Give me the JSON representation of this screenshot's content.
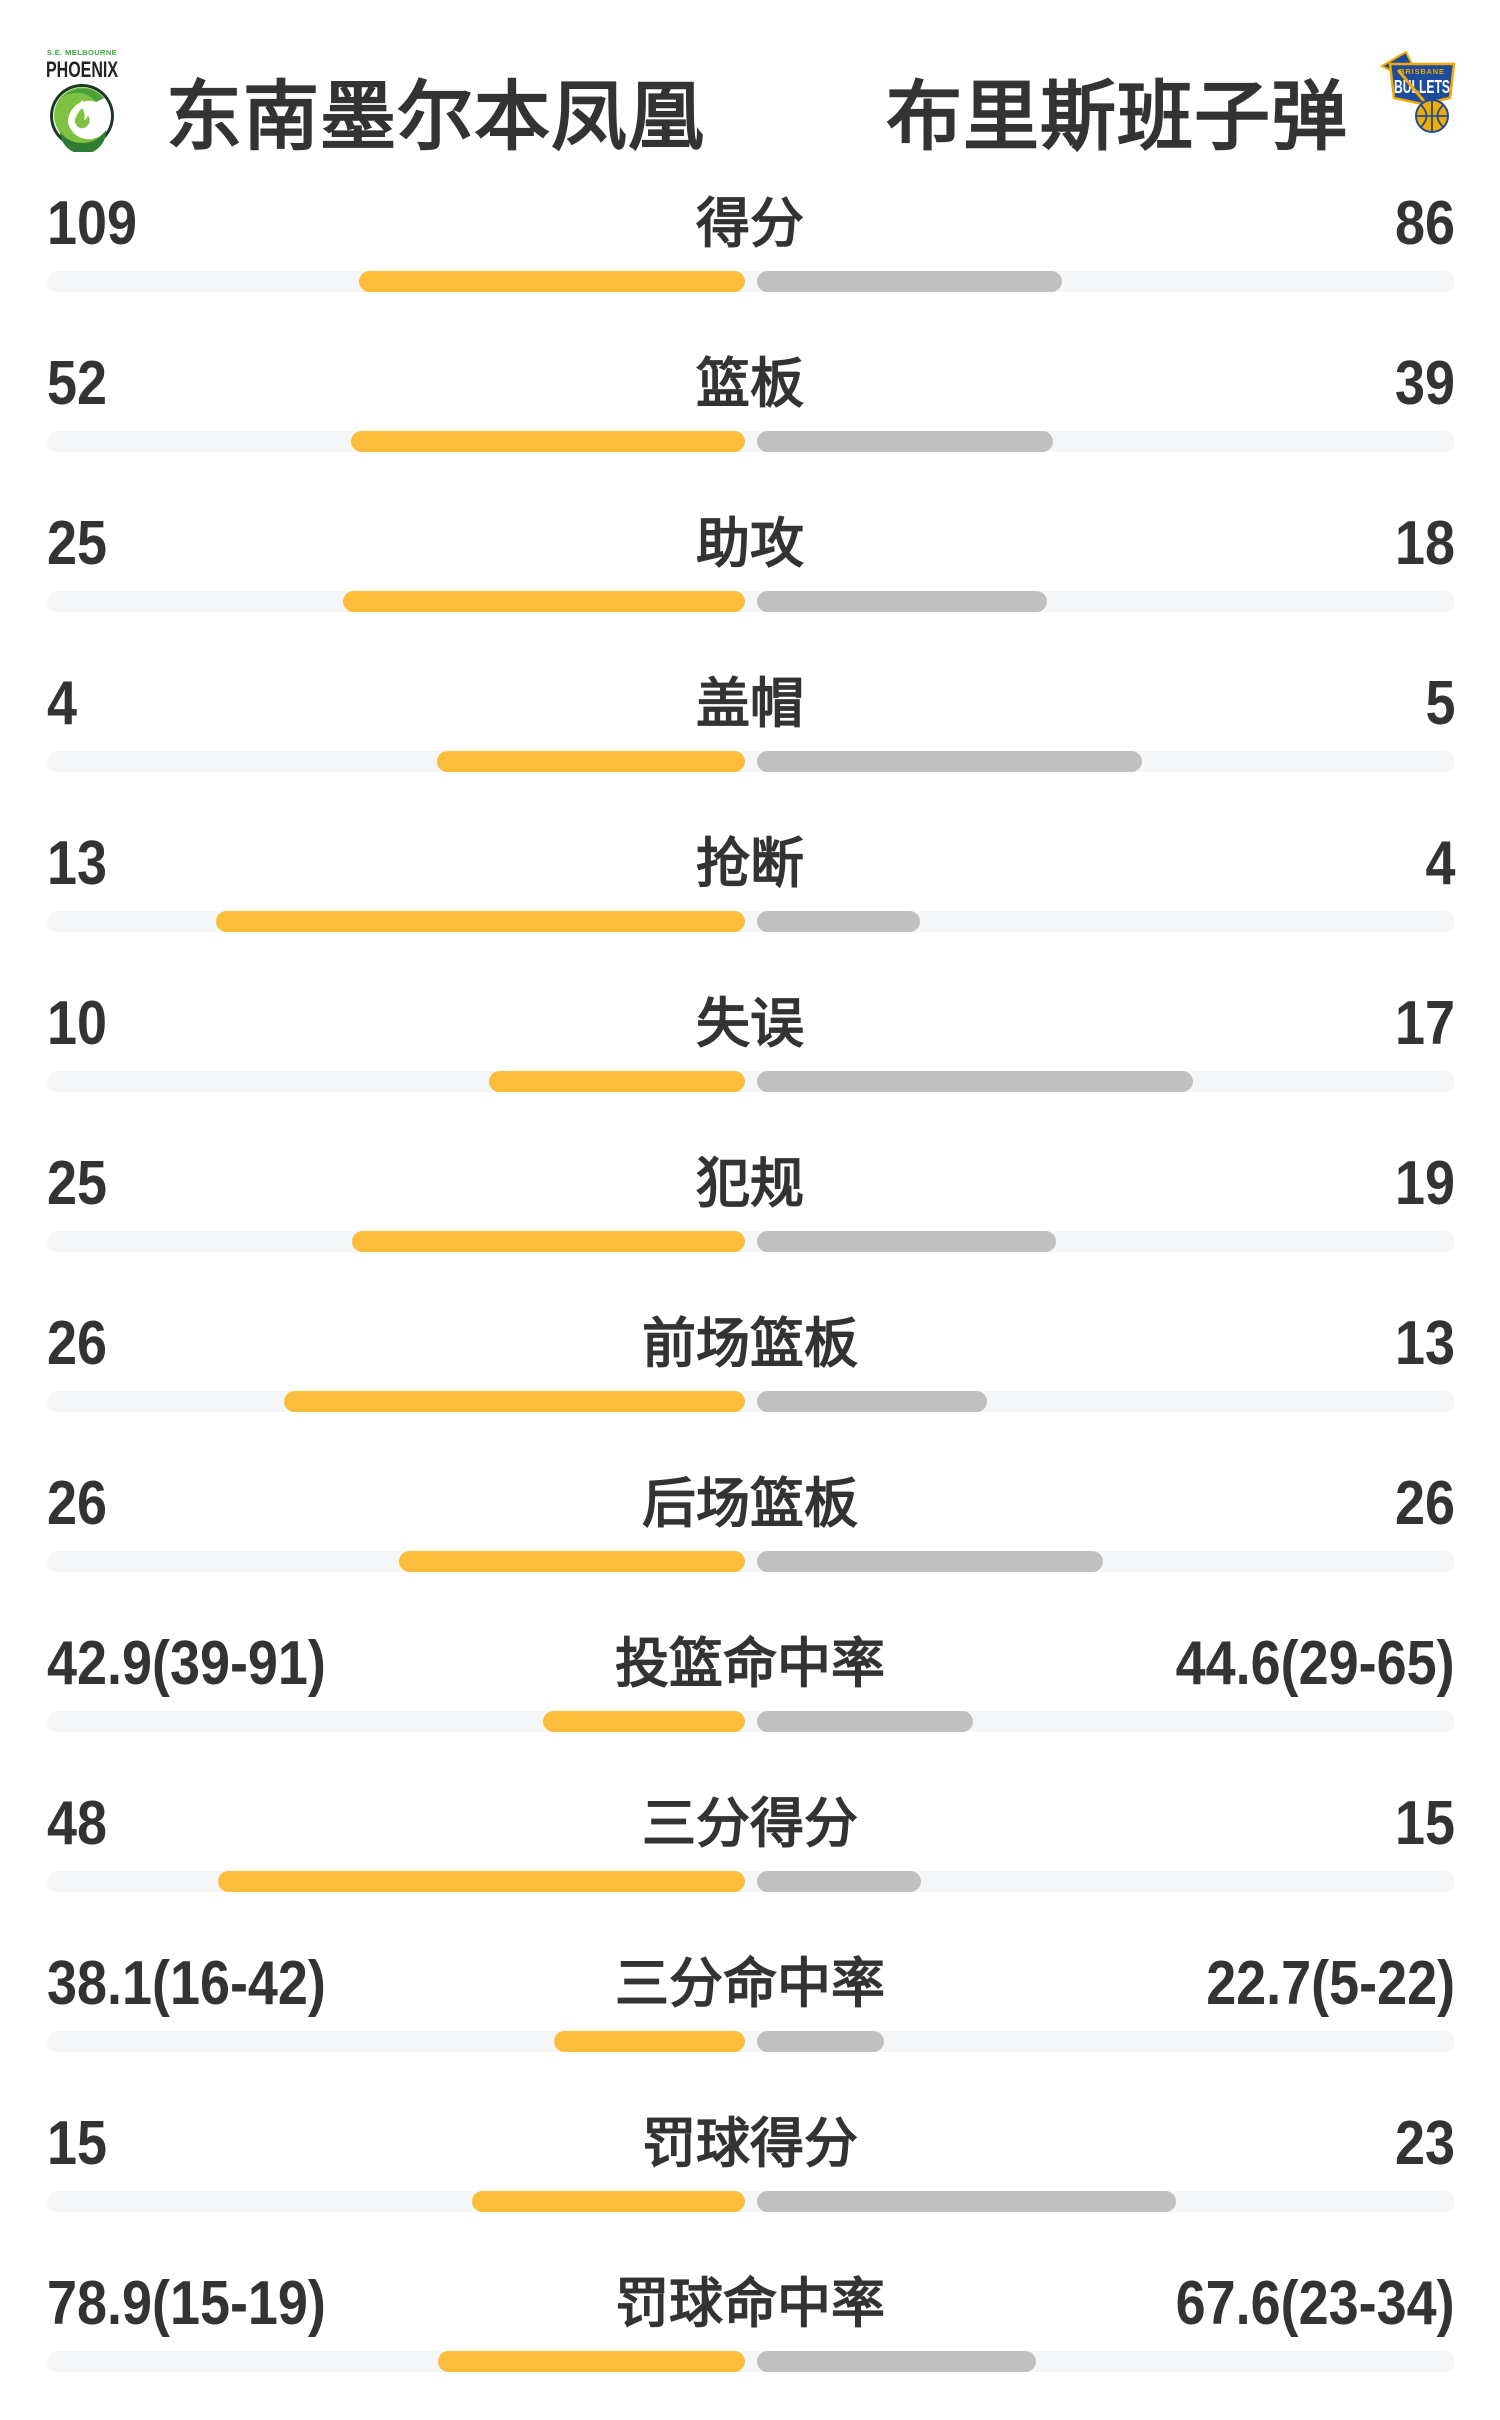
{
  "header": {
    "home_team": {
      "name": "东南墨尔本凤凰",
      "logo_subtitle": "S.E. MELBOURNE",
      "logo_title": "PHOENIX"
    },
    "away_team": {
      "name": "布里斯班子弹",
      "logo_subtitle": "BRISBANE",
      "logo_title": "BULLETS"
    }
  },
  "colors": {
    "home_bar": "#FBBD3C",
    "away_bar": "#C0C0C0",
    "track": "#F5F6F8",
    "text": "#333333",
    "background": "#FFFFFF",
    "phoenix_green": "#7DC242",
    "phoenix_dark": "#1C3A22",
    "bullets_blue": "#1D4C9C",
    "bullets_gold": "#F2A900"
  },
  "stats": [
    {
      "label": "得分",
      "home": "109",
      "away": "86",
      "home_bar": 0.553,
      "away_bar": 0.437
    },
    {
      "label": "篮板",
      "home": "52",
      "away": "39",
      "home_bar": 0.565,
      "away_bar": 0.424
    },
    {
      "label": "助攻",
      "home": "25",
      "away": "18",
      "home_bar": 0.576,
      "away_bar": 0.415
    },
    {
      "label": "盖帽",
      "home": "4",
      "away": "5",
      "home_bar": 0.441,
      "away_bar": 0.551
    },
    {
      "label": "抢断",
      "home": "13",
      "away": "4",
      "home_bar": 0.758,
      "away_bar": 0.233
    },
    {
      "label": "失误",
      "home": "10",
      "away": "17",
      "home_bar": 0.367,
      "away_bar": 0.624
    },
    {
      "label": "犯规",
      "home": "25",
      "away": "19",
      "home_bar": 0.563,
      "away_bar": 0.428
    },
    {
      "label": "前场篮板",
      "home": "26",
      "away": "13",
      "home_bar": 0.661,
      "away_bar": 0.33
    },
    {
      "label": "后场篮板",
      "home": "26",
      "away": "26",
      "home_bar": 0.496,
      "away_bar": 0.496
    },
    {
      "label": "投篮命中率",
      "home": "42.9(39-91)",
      "away": "44.6(29-65)",
      "home_bar": 0.29,
      "away_bar": 0.31
    },
    {
      "label": "三分得分",
      "home": "48",
      "away": "15",
      "home_bar": 0.755,
      "away_bar": 0.235
    },
    {
      "label": "三分命中率",
      "home": "38.1(16-42)",
      "away": "22.7(5-22)",
      "home_bar": 0.273,
      "away_bar": 0.182
    },
    {
      "label": "罚球得分",
      "home": "15",
      "away": "23",
      "home_bar": 0.391,
      "away_bar": 0.6
    },
    {
      "label": "罚球命中率",
      "home": "78.9(15-19)",
      "away": "67.6(23-34)",
      "home_bar": 0.44,
      "away_bar": 0.4
    }
  ]
}
